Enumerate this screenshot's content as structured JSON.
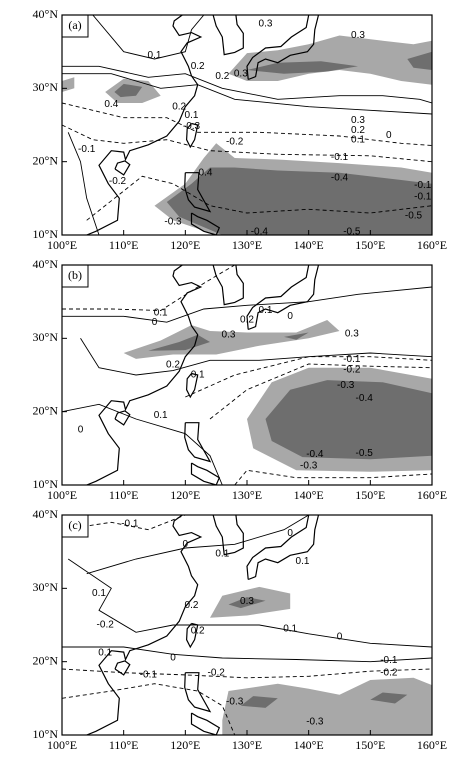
{
  "axes": {
    "x_labels": [
      "100°E",
      "110°E",
      "120°E",
      "130°E",
      "140°E",
      "150°E",
      "160°E"
    ],
    "y_labels": [
      "40°N",
      "30°N",
      "20°N",
      "10°N"
    ]
  },
  "panels": [
    {
      "label": "(a)",
      "contour_labels": [
        "0.3",
        "0.3",
        "0.1",
        "0.2",
        "0.2",
        "0.3",
        "0.4",
        "0.2",
        "0.1",
        "-0.3",
        "0.3",
        "0.2",
        "0.1",
        "0",
        "-0.2",
        "-0.1",
        "-0.1",
        "-0.2",
        "-0.4",
        "-0.4",
        "-0.1",
        "-0.1",
        "-0.3",
        "-0.5",
        "-0.4",
        "-0.5"
      ]
    },
    {
      "label": "(b)",
      "contour_labels": [
        "0.1",
        "0",
        "0.1",
        "0.2",
        "0",
        "0.3",
        "0.3",
        "0.2",
        "0.1",
        "-0.1",
        "-0.2",
        "0.1",
        "0",
        "-0.3",
        "-0.4",
        "-0.4",
        "-0.5",
        "-0.3"
      ]
    },
    {
      "label": "(c)",
      "contour_labels": [
        "-0.1",
        "0",
        "0.1",
        "0",
        "0.1",
        "0.1",
        "0.2",
        "0.3",
        "-0.2",
        "0.2",
        "0.1",
        "0",
        "0.1",
        "0",
        "-0.1",
        "-0.1",
        "-0.2",
        "-0.2",
        "-0.3",
        "-0.3"
      ]
    }
  ]
}
